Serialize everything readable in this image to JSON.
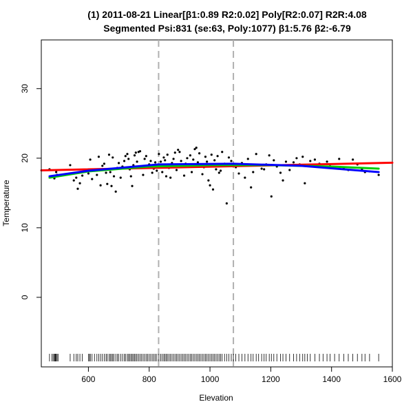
{
  "chart_data": {
    "type": "scatter",
    "title_line1": "(1) 2011-08-21 Linear[β1:0.89 R2:0.02] Poly[R2:0.07] R2R:4.08",
    "title_line2": "Segmented Psi:831 (se:63, Poly:1077) β1:5.76 β2:-6.79",
    "xlabel": "Elevation",
    "ylabel": "Temperature",
    "xlim": [
      445,
      1600
    ],
    "ylim": [
      -10,
      37
    ],
    "xticks": [
      600,
      800,
      1000,
      1200,
      1400,
      1600
    ],
    "yticks": [
      0,
      10,
      20,
      30
    ],
    "grid": false,
    "vlines": [
      831,
      1077
    ],
    "points": [
      [
        472,
        18.4
      ],
      [
        488,
        17.1
      ],
      [
        494,
        18.0
      ],
      [
        497,
        17.6
      ],
      [
        540,
        19.0
      ],
      [
        552,
        16.8
      ],
      [
        560,
        17.2
      ],
      [
        565,
        15.6
      ],
      [
        572,
        16.4
      ],
      [
        580,
        17.5
      ],
      [
        600,
        17.8
      ],
      [
        606,
        19.8
      ],
      [
        612,
        17.0
      ],
      [
        620,
        18.2
      ],
      [
        628,
        17.6
      ],
      [
        634,
        20.2
      ],
      [
        640,
        16.1
      ],
      [
        646,
        18.9
      ],
      [
        652,
        19.2
      ],
      [
        658,
        17.9
      ],
      [
        662,
        16.3
      ],
      [
        668,
        20.5
      ],
      [
        672,
        18.0
      ],
      [
        676,
        16.0
      ],
      [
        680,
        20.1
      ],
      [
        684,
        17.4
      ],
      [
        690,
        15.2
      ],
      [
        695,
        18.6
      ],
      [
        700,
        19.3
      ],
      [
        706,
        17.2
      ],
      [
        712,
        18.8
      ],
      [
        718,
        19.6
      ],
      [
        722,
        20.3
      ],
      [
        728,
        20.6
      ],
      [
        732,
        19.9
      ],
      [
        736,
        18.4
      ],
      [
        740,
        17.4
      ],
      [
        744,
        16.0
      ],
      [
        748,
        19.0
      ],
      [
        752,
        20.4
      ],
      [
        756,
        20.8
      ],
      [
        760,
        19.5
      ],
      [
        765,
        20.9
      ],
      [
        770,
        21.0
      ],
      [
        775,
        18.6
      ],
      [
        780,
        17.6
      ],
      [
        785,
        19.9
      ],
      [
        790,
        20.3
      ],
      [
        795,
        18.8
      ],
      [
        800,
        19.1
      ],
      [
        805,
        19.6
      ],
      [
        810,
        17.9
      ],
      [
        815,
        18.5
      ],
      [
        820,
        19.4
      ],
      [
        825,
        18.2
      ],
      [
        832,
        20.6
      ],
      [
        838,
        19.5
      ],
      [
        843,
        18.0
      ],
      [
        848,
        20.1
      ],
      [
        852,
        19.7
      ],
      [
        856,
        17.4
      ],
      [
        860,
        20.5
      ],
      [
        865,
        18.6
      ],
      [
        870,
        17.2
      ],
      [
        875,
        19.3
      ],
      [
        880,
        19.9
      ],
      [
        885,
        20.8
      ],
      [
        890,
        18.3
      ],
      [
        895,
        21.2
      ],
      [
        900,
        20.9
      ],
      [
        905,
        19.6
      ],
      [
        910,
        18.9
      ],
      [
        915,
        17.5
      ],
      [
        920,
        19.2
      ],
      [
        925,
        20.0
      ],
      [
        930,
        19.0
      ],
      [
        935,
        20.4
      ],
      [
        940,
        18.0
      ],
      [
        945,
        19.8
      ],
      [
        950,
        21.3
      ],
      [
        955,
        21.5
      ],
      [
        960,
        19.4
      ],
      [
        965,
        20.7
      ],
      [
        970,
        19.1
      ],
      [
        975,
        17.7
      ],
      [
        980,
        18.7
      ],
      [
        985,
        20.2
      ],
      [
        990,
        19.5
      ],
      [
        995,
        16.8
      ],
      [
        1000,
        16.1
      ],
      [
        1005,
        20.5
      ],
      [
        1010,
        15.5
      ],
      [
        1015,
        19.7
      ],
      [
        1020,
        18.4
      ],
      [
        1025,
        20.3
      ],
      [
        1030,
        17.9
      ],
      [
        1035,
        18.2
      ],
      [
        1040,
        20.9
      ],
      [
        1048,
        19.2
      ],
      [
        1055,
        13.5
      ],
      [
        1062,
        20.1
      ],
      [
        1070,
        19.6
      ],
      [
        1077,
        19.0
      ],
      [
        1085,
        18.7
      ],
      [
        1095,
        17.8
      ],
      [
        1105,
        19.3
      ],
      [
        1115,
        17.2
      ],
      [
        1125,
        19.9
      ],
      [
        1135,
        15.8
      ],
      [
        1142,
        18.0
      ],
      [
        1152,
        20.6
      ],
      [
        1160,
        19.0
      ],
      [
        1170,
        18.5
      ],
      [
        1178,
        18.4
      ],
      [
        1185,
        19.1
      ],
      [
        1195,
        20.4
      ],
      [
        1202,
        14.5
      ],
      [
        1210,
        19.7
      ],
      [
        1220,
        18.8
      ],
      [
        1232,
        17.9
      ],
      [
        1240,
        16.8
      ],
      [
        1250,
        19.5
      ],
      [
        1262,
        18.3
      ],
      [
        1275,
        19.4
      ],
      [
        1285,
        20.0
      ],
      [
        1295,
        19.1
      ],
      [
        1305,
        20.2
      ],
      [
        1312,
        16.4
      ],
      [
        1320,
        18.9
      ],
      [
        1330,
        19.6
      ],
      [
        1345,
        19.8
      ],
      [
        1360,
        19.2
      ],
      [
        1372,
        18.8
      ],
      [
        1385,
        19.5
      ],
      [
        1395,
        19.1
      ],
      [
        1410,
        18.7
      ],
      [
        1425,
        19.9
      ],
      [
        1440,
        18.6
      ],
      [
        1455,
        18.3
      ],
      [
        1470,
        19.8
      ],
      [
        1485,
        19.1
      ],
      [
        1500,
        18.4
      ],
      [
        1510,
        18.0
      ],
      [
        1525,
        18.1
      ],
      [
        1555,
        17.6
      ]
    ],
    "rug": [
      472,
      480,
      484,
      488,
      490,
      492,
      494,
      497,
      500,
      540,
      552,
      560,
      565,
      572,
      580,
      600,
      604,
      606,
      612,
      620,
      628,
      634,
      640,
      646,
      652,
      658,
      662,
      668,
      672,
      676,
      680,
      684,
      690,
      695,
      700,
      706,
      712,
      718,
      722,
      728,
      732,
      736,
      740,
      744,
      748,
      752,
      756,
      760,
      765,
      770,
      775,
      780,
      785,
      790,
      795,
      800,
      805,
      810,
      815,
      820,
      825,
      832,
      838,
      843,
      848,
      852,
      856,
      860,
      865,
      870,
      875,
      880,
      885,
      890,
      895,
      900,
      905,
      910,
      915,
      920,
      925,
      930,
      935,
      940,
      945,
      950,
      955,
      960,
      965,
      970,
      975,
      980,
      985,
      990,
      995,
      1000,
      1005,
      1010,
      1015,
      1020,
      1025,
      1030,
      1035,
      1040,
      1048,
      1055,
      1062,
      1070,
      1077,
      1085,
      1095,
      1105,
      1115,
      1125,
      1135,
      1142,
      1152,
      1160,
      1170,
      1178,
      1185,
      1195,
      1202,
      1210,
      1220,
      1232,
      1240,
      1250,
      1262,
      1275,
      1285,
      1295,
      1305,
      1312,
      1320,
      1330,
      1345,
      1360,
      1372,
      1385,
      1395,
      1410,
      1425,
      1440,
      1455,
      1470,
      1485,
      1500,
      1510,
      1525,
      1555
    ],
    "series": [
      {
        "color": "#ff0000",
        "points": [
          [
            445,
            18.25
          ],
          [
            1600,
            19.35
          ]
        ]
      },
      {
        "color": "#00cc00",
        "points": [
          [
            472,
            17.2
          ],
          [
            600,
            18.1
          ],
          [
            800,
            18.8
          ],
          [
            1000,
            19.0
          ],
          [
            1200,
            19.0
          ],
          [
            1400,
            18.8
          ],
          [
            1555,
            18.5
          ]
        ]
      },
      {
        "color": "#0000ff",
        "points": [
          [
            472,
            17.4
          ],
          [
            600,
            18.2
          ],
          [
            831,
            19.1
          ],
          [
            1077,
            19.2
          ],
          [
            1300,
            18.9
          ],
          [
            1555,
            18.0
          ]
        ]
      }
    ]
  },
  "colors": {
    "points": "#000000",
    "vlines": "#b0b0b0",
    "axes": "#000000"
  }
}
